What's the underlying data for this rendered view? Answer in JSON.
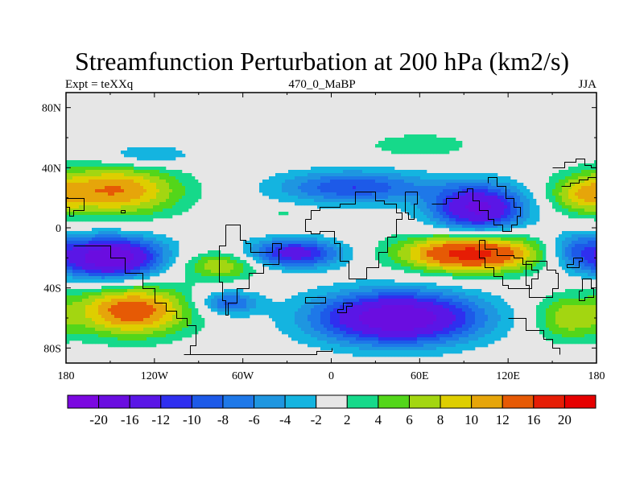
{
  "title": "Streamfunction Perturbation at 200 hPa (km2/s)",
  "left_string": "Expt = teXXq",
  "center_string": "470_0_MaBP",
  "right_string": "JJA",
  "map": {
    "lon_range": [
      -180,
      180
    ],
    "lat_range": [
      -90,
      90
    ],
    "lat_ticks": [
      {
        "value": 80,
        "label": "80N"
      },
      {
        "value": 40,
        "label": "40N"
      },
      {
        "value": 0,
        "label": "0"
      },
      {
        "value": -40,
        "label": "40S"
      },
      {
        "value": -80,
        "label": "80S"
      }
    ],
    "lon_ticks": [
      {
        "value": -180,
        "label": "180"
      },
      {
        "value": -120,
        "label": "120W"
      },
      {
        "value": -60,
        "label": "60W"
      },
      {
        "value": 0,
        "label": "0"
      },
      {
        "value": 60,
        "label": "60E"
      },
      {
        "value": 120,
        "label": "120E"
      },
      {
        "value": 180,
        "label": "180"
      }
    ],
    "missing_color": "#e6e6e6",
    "outline_color": "#000000",
    "blobs": [
      {
        "lon": -145,
        "lat": 25,
        "rlon": 55,
        "rlat": 22,
        "peak": 12
      },
      {
        "lon": -125,
        "lat": 48,
        "rlon": 40,
        "rlat": 10,
        "peak": -5
      },
      {
        "lon": -150,
        "lat": -20,
        "rlon": 45,
        "rlat": 18,
        "peak": -20
      },
      {
        "lon": -135,
        "lat": -55,
        "rlon": 50,
        "rlat": 22,
        "peak": 14
      },
      {
        "lon": -75,
        "lat": -25,
        "rlon": 35,
        "rlat": 12,
        "peak": 8
      },
      {
        "lon": -70,
        "lat": -50,
        "rlon": 25,
        "rlat": 10,
        "peak": -9
      },
      {
        "lon": -25,
        "lat": -17,
        "rlon": 40,
        "rlat": 12,
        "peak": -14
      },
      {
        "lon": -32,
        "lat": 10,
        "rlon": 10,
        "rlat": 4,
        "peak": 3
      },
      {
        "lon": 15,
        "lat": 27,
        "rlon": 65,
        "rlat": 14,
        "peak": -10
      },
      {
        "lon": 60,
        "lat": 55,
        "rlon": 45,
        "rlat": 10,
        "peak": 4
      },
      {
        "lon": 100,
        "lat": 13,
        "rlon": 40,
        "rlat": 20,
        "peak": -17
      },
      {
        "lon": 95,
        "lat": -17,
        "rlon": 60,
        "rlat": 16,
        "peak": 18
      },
      {
        "lon": 45,
        "lat": -60,
        "rlon": 70,
        "rlat": 22,
        "peak": -20
      },
      {
        "lon": 170,
        "lat": 22,
        "rlon": 30,
        "rlat": 16,
        "peak": 7
      },
      {
        "lon": 165,
        "lat": -15,
        "rlon": 25,
        "rlat": 16,
        "peak": -7
      },
      {
        "lon": 160,
        "lat": -60,
        "rlon": 30,
        "rlat": 20,
        "peak": 7
      }
    ]
  },
  "labelbar": {
    "colors": [
      "#7b08e0",
      "#6a0de0",
      "#5a16e6",
      "#2f2fef",
      "#1d5ae8",
      "#1e78e8",
      "#1e96e0",
      "#14b4e0",
      "#e6e6e6",
      "#16d98a",
      "#53d61a",
      "#a3d611",
      "#dece00",
      "#e6a50a",
      "#e65a05",
      "#e61d05",
      "#e60000"
    ],
    "labels": [
      "-20",
      "-16",
      "-12",
      "-10",
      "-8",
      "-6",
      "-4",
      "-2",
      "2",
      "4",
      "6",
      "8",
      "10",
      "12",
      "16",
      "20"
    ],
    "levels": [
      -20,
      -16,
      -12,
      -10,
      -8,
      -6,
      -4,
      -2,
      2,
      4,
      6,
      8,
      10,
      12,
      16,
      20
    ]
  }
}
